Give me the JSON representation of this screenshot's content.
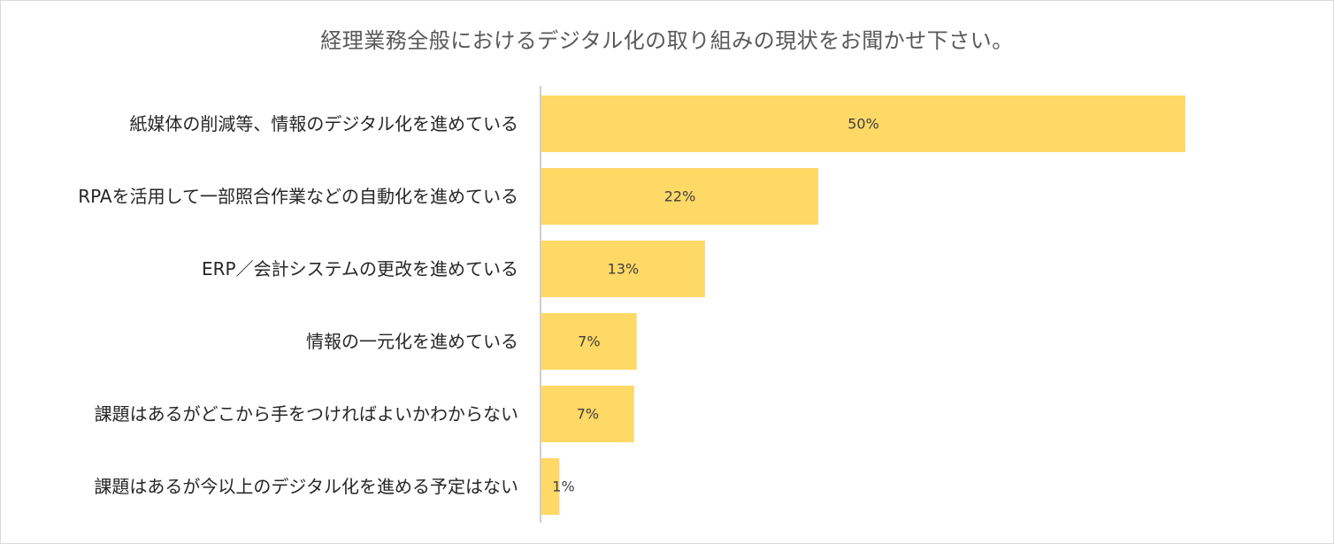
{
  "chart_data": {
    "type": "bar",
    "orientation": "horizontal",
    "title": "経理業務全般におけるデジタル化の取り組みの現状をお聞かせ下さい。",
    "categories": [
      "紙媒体の削減等、情報のデジタル化を進めている",
      "RPAを活用して一部照合作業などの自動化を進めている",
      "ERP／会計システムの更改を進めている",
      "情報の一元化を進めている",
      "課題はあるがどこから手をつければよいかわからない",
      "課題はあるが今以上のデジタル化を進める予定はない"
    ],
    "values": [
      50,
      21.5,
      12.7,
      7.4,
      7.2,
      1.4
    ],
    "value_labels": [
      "50%",
      "22%",
      "13%",
      "7%",
      "7%",
      "1%"
    ],
    "unit": "%",
    "xlim": [
      0,
      60
    ],
    "grid": false,
    "legend": "none",
    "bar_color": "#FFD966"
  }
}
